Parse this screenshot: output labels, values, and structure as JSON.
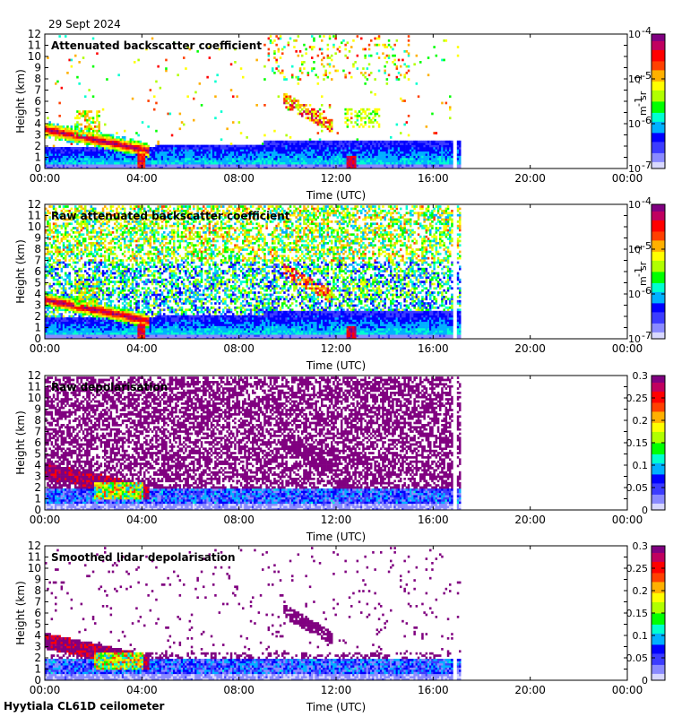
{
  "header": {
    "date": "29 Sept 2024"
  },
  "footer": {
    "site": "Hyytiala CL61D ceilometer"
  },
  "colors": [
    "#d8d8ff",
    "#8a8aff",
    "#3c3cff",
    "#0000ff",
    "#00b0ff",
    "#00ffd0",
    "#00ff00",
    "#b0ff00",
    "#ffff00",
    "#ffb000",
    "#ff4000",
    "#ff0000",
    "#c00060",
    "#800080"
  ],
  "chart_data": [
    {
      "type": "heatmap",
      "title": "Attenuated backscatter coefficient",
      "xlabel": "Time (UTC)",
      "ylabel": "Height (km)",
      "x_ticks": [
        "00:00",
        "04:00",
        "08:00",
        "12:00",
        "16:00",
        "20:00",
        "00:00"
      ],
      "y_ticks": [
        "0",
        "1",
        "2",
        "3",
        "4",
        "5",
        "6",
        "7",
        "8",
        "9",
        "10",
        "11",
        "12"
      ],
      "ylim": [
        0,
        12
      ],
      "xlim_hours": [
        0,
        24
      ],
      "data_end_hour": 17.1,
      "colorbar": {
        "scale": "log",
        "ticks": [
          "10",
          "10",
          "10",
          "10"
        ],
        "exponents": [
          "-4",
          "-5",
          "-6",
          "-7"
        ],
        "label_base": "m",
        "label_exp1": "-1",
        "label_mid": " sr",
        "label_exp2": "-1"
      },
      "features": "noise-free; boundary layer 0–2.5 km; cloud layers near 3–4 km 00:00–04:30; elevated layer 4–6 km near 10:00–11:30"
    },
    {
      "type": "heatmap",
      "title": "Raw attenuated backscatter coefficient",
      "xlabel": "Time (UTC)",
      "ylabel": "Height (km)",
      "x_ticks": [
        "00:00",
        "04:00",
        "08:00",
        "12:00",
        "16:00",
        "20:00",
        "00:00"
      ],
      "y_ticks": [
        "0",
        "1",
        "2",
        "3",
        "4",
        "5",
        "6",
        "7",
        "8",
        "9",
        "10",
        "11",
        "12"
      ],
      "ylim": [
        0,
        12
      ],
      "xlim_hours": [
        0,
        24
      ],
      "data_end_hour": 17.1,
      "colorbar": {
        "scale": "log",
        "ticks": [
          "10",
          "10",
          "10",
          "10"
        ],
        "exponents": [
          "-4",
          "-5",
          "-6",
          "-7"
        ],
        "label_base": "m",
        "label_exp1": "-1",
        "label_mid": " sr",
        "label_exp2": "-1"
      }
    },
    {
      "type": "heatmap",
      "title": "Raw depolarisation",
      "xlabel": "Time (UTC)",
      "ylabel": "Height (km)",
      "x_ticks": [
        "00:00",
        "04:00",
        "08:00",
        "12:00",
        "16:00",
        "20:00",
        "00:00"
      ],
      "y_ticks": [
        "0",
        "1",
        "2",
        "3",
        "4",
        "5",
        "6",
        "7",
        "8",
        "9",
        "10",
        "11",
        "12"
      ],
      "ylim": [
        0,
        12
      ],
      "xlim_hours": [
        0,
        24
      ],
      "data_end_hour": 17.1,
      "colorbar": {
        "scale": "linear",
        "ticks": [
          "0.3",
          "0.25",
          "0.2",
          "0.15",
          "0.1",
          "0.05",
          "0"
        ]
      }
    },
    {
      "type": "heatmap",
      "title": "Smoothed lidar depolarisation",
      "xlabel": "Time (UTC)",
      "ylabel": "Height (km)",
      "x_ticks": [
        "00:00",
        "04:00",
        "08:00",
        "12:00",
        "16:00",
        "20:00",
        "00:00"
      ],
      "y_ticks": [
        "0",
        "1",
        "2",
        "3",
        "4",
        "5",
        "6",
        "7",
        "8",
        "9",
        "10",
        "11",
        "12"
      ],
      "ylim": [
        0,
        12
      ],
      "xlim_hours": [
        0,
        24
      ],
      "data_end_hour": 17.1,
      "colorbar": {
        "scale": "linear",
        "ticks": [
          "0.3",
          "0.25",
          "0.2",
          "0.15",
          "0.1",
          "0.05",
          "0"
        ]
      }
    }
  ]
}
